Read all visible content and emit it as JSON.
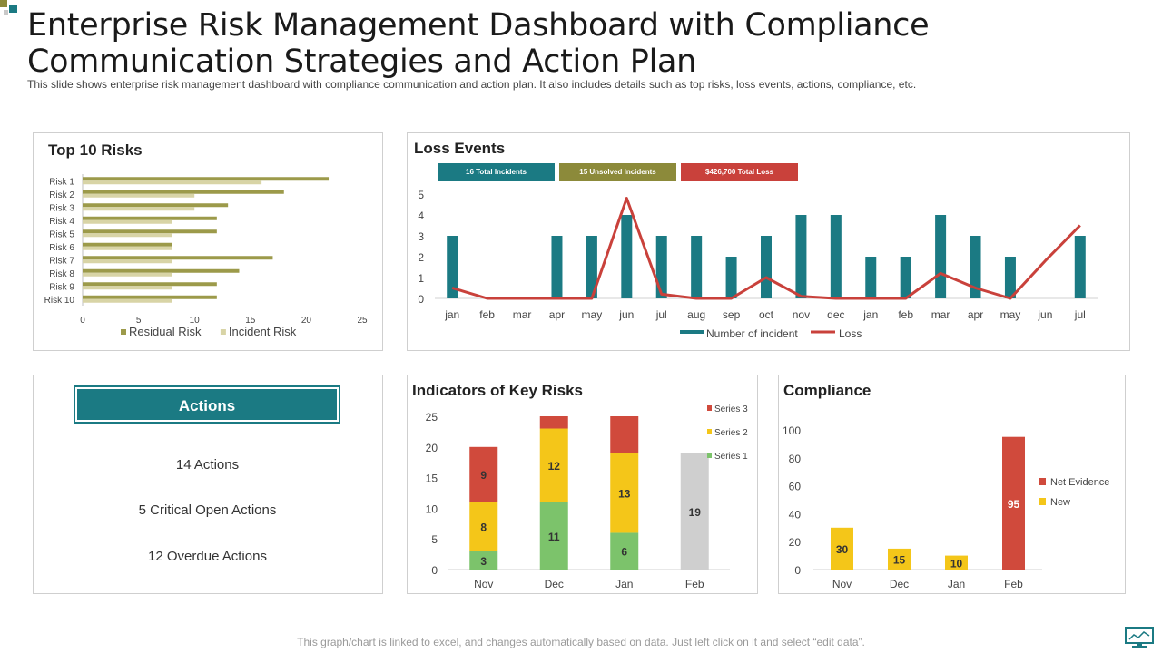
{
  "header": {
    "title": "Enterprise Risk Management Dashboard with Compliance Communication Strategies and Action Plan",
    "subtitle": "This slide shows enterprise risk management dashboard with compliance communication and action plan. It also includes details such as top risks, loss events, actions, compliance, etc."
  },
  "top_risks": {
    "title": "Top 10 Risks"
  },
  "loss_events": {
    "title": "Loss Events",
    "badges": [
      {
        "label": "16 Total Incidents",
        "color": "#1b7a83"
      },
      {
        "label": "15 Unsolved Incidents",
        "color": "#8c8a3a"
      },
      {
        "label": "$426,700  Total Loss",
        "color": "#c9413b"
      }
    ]
  },
  "actions": {
    "title": "Actions",
    "items": [
      "14 Actions",
      "5 Critical Open Actions",
      "12 Overdue Actions"
    ]
  },
  "key_risks": {
    "title": "Indicators of Key Risks"
  },
  "compliance": {
    "title": "Compliance"
  },
  "footer": {
    "note": "This graph/chart is linked to excel,  and changes automatically based on data. Just left click on it and select “edit data”."
  },
  "chart_data": [
    {
      "id": "top_risks",
      "type": "bar",
      "orientation": "horizontal",
      "categories": [
        "Risk 1",
        "Risk 2",
        "Risk 3",
        "Risk 4",
        "Risk 5",
        "Risk 6",
        "Risk 7",
        "Risk 8",
        "Risk 9",
        "Risk 10"
      ],
      "series": [
        {
          "name": "Residual Risk",
          "color": "#9c9a4a",
          "values": [
            22,
            18,
            13,
            12,
            12,
            8,
            17,
            14,
            12,
            12
          ]
        },
        {
          "name": "Incident Risk",
          "color": "#d8d4a6",
          "values": [
            16,
            10,
            10,
            8,
            8,
            8,
            8,
            8,
            8,
            8
          ]
        }
      ],
      "xlim": [
        0,
        25
      ],
      "xticks": [
        0,
        5,
        10,
        15,
        20,
        25
      ],
      "legend": "bottom"
    },
    {
      "id": "loss_events",
      "type": "bar",
      "categories": [
        "jan",
        "feb",
        "mar",
        "apr",
        "may",
        "jun",
        "jul",
        "aug",
        "sep",
        "oct",
        "nov",
        "dec",
        "jan",
        "feb",
        "mar",
        "apr",
        "may",
        "jun",
        "jul"
      ],
      "series": [
        {
          "name": "Number of incident",
          "type": "bar",
          "color": "#1b7a83",
          "values": [
            3,
            0,
            0,
            3,
            3,
            4,
            3,
            3,
            2,
            3,
            4,
            4,
            2,
            2,
            4,
            3,
            2,
            0,
            3
          ]
        },
        {
          "name": "Loss",
          "type": "line",
          "color": "#c9413b",
          "values": [
            0.5,
            0,
            0,
            0,
            0,
            4.8,
            0.2,
            0,
            0,
            1,
            0.1,
            0,
            0,
            0,
            1.2,
            0.5,
            0,
            1.8,
            3.5
          ]
        }
      ],
      "ylim": [
        0,
        5
      ],
      "yticks": [
        0,
        1,
        2,
        3,
        4,
        5
      ],
      "legend": "bottom"
    },
    {
      "id": "key_risks",
      "type": "bar",
      "stacked": true,
      "categories": [
        "Nov",
        "Dec",
        "Jan",
        "Feb"
      ],
      "series": [
        {
          "name": "Series 1",
          "color": "#7cc36b",
          "values": [
            3,
            11,
            6,
            0
          ]
        },
        {
          "name": "Series 2",
          "color": "#f4c619",
          "values": [
            8,
            12,
            13,
            0
          ]
        },
        {
          "name": "Series 3",
          "color": "#d04a3c",
          "values": [
            9,
            2,
            6,
            0
          ]
        }
      ],
      "extra_bar": {
        "category": "Feb",
        "value": 19,
        "color": "#cfcfcf"
      },
      "data_labels": [
        [
          "3",
          "8",
          "9"
        ],
        [
          "11",
          "12",
          ""
        ],
        [
          "6",
          "13",
          ""
        ],
        [
          "19"
        ]
      ],
      "ylim": [
        0,
        25
      ],
      "yticks": [
        0,
        5,
        10,
        15,
        20,
        25
      ],
      "legend": "right"
    },
    {
      "id": "compliance",
      "type": "bar",
      "categories": [
        "Nov",
        "Dec",
        "Jan",
        "Feb"
      ],
      "series": [
        {
          "name": "Net Evidence",
          "color": "#d04a3c",
          "values": [
            0,
            0,
            0,
            95
          ]
        },
        {
          "name": "New",
          "color": "#f4c619",
          "values": [
            30,
            15,
            10,
            0
          ]
        }
      ],
      "data_labels": [
        "30",
        "15",
        "10",
        "95"
      ],
      "ylim": [
        0,
        100
      ],
      "yticks": [
        0,
        20,
        40,
        60,
        80,
        100
      ],
      "legend": "right"
    }
  ]
}
